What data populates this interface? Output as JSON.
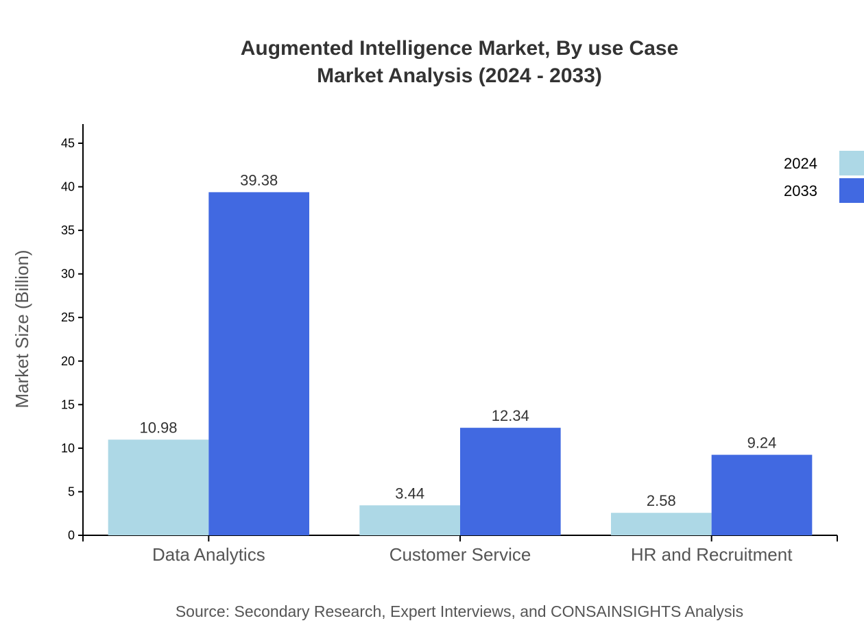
{
  "chart_data": {
    "type": "bar",
    "title": "Augmented Intelligence Market, By use Case",
    "subtitle": "Market Analysis (2024 - 2033)",
    "xlabel": "",
    "ylabel": "Market Size (Billion)",
    "ylim": [
      0,
      47.2
    ],
    "yticks": [
      0,
      5,
      10,
      15,
      20,
      25,
      30,
      35,
      40,
      45
    ],
    "categories": [
      "Data Analytics",
      "Customer Service",
      "HR and Recruitment"
    ],
    "series": [
      {
        "name": "2024",
        "color": "#add8e6",
        "values": [
          10.98,
          3.44,
          2.58
        ]
      },
      {
        "name": "2033",
        "color": "#4169e1",
        "values": [
          39.38,
          12.34,
          9.24
        ]
      }
    ],
    "grid": false,
    "legend_position": "top-right",
    "source": "Source: Secondary Research, Expert Interviews, and CONSAINSIGHTS Analysis"
  }
}
